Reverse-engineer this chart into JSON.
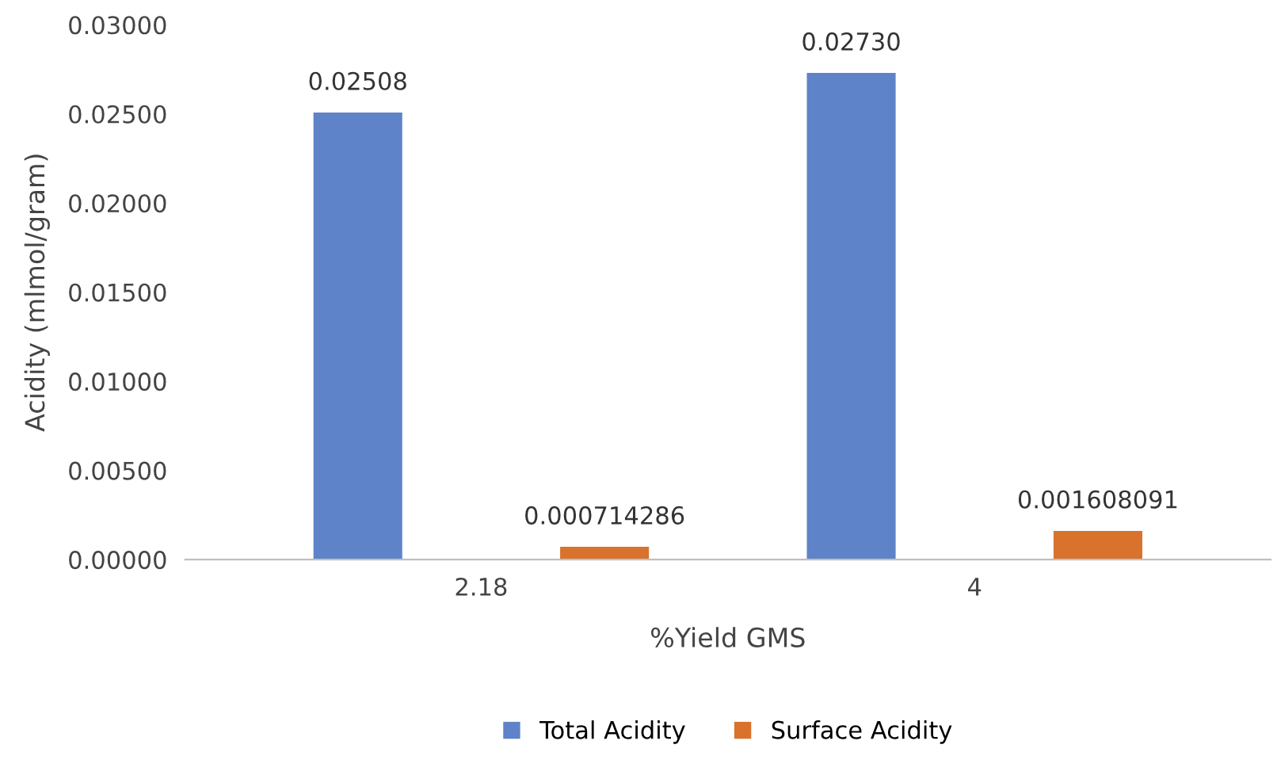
{
  "chart_data": {
    "type": "bar",
    "xlabel": "%Yield GMS",
    "ylabel": "Acidity (mlmol/gram)",
    "categories": [
      "2.18",
      "4"
    ],
    "series": [
      {
        "name": "Total Acidity",
        "color": "#5f83c9",
        "values": [
          0.02508,
          0.0273
        ],
        "value_labels": [
          "0.02508",
          "0.02730"
        ]
      },
      {
        "name": "Surface Acidity",
        "color": "#d8722c",
        "values": [
          0.000714286,
          0.001608091
        ],
        "value_labels": [
          "0.000714286",
          "0.001608091"
        ]
      }
    ],
    "ylim": [
      0,
      0.03
    ],
    "yticks": [
      {
        "value": 0,
        "label": "0.00000"
      },
      {
        "value": 0.005,
        "label": "0.00500"
      },
      {
        "value": 0.01,
        "label": "0.01000"
      },
      {
        "value": 0.015,
        "label": "0.01500"
      },
      {
        "value": 0.02,
        "label": "0.02000"
      },
      {
        "value": 0.025,
        "label": "0.02500"
      },
      {
        "value": 0.03,
        "label": "0.03000"
      }
    ],
    "grid": false,
    "legend": "bottom"
  }
}
